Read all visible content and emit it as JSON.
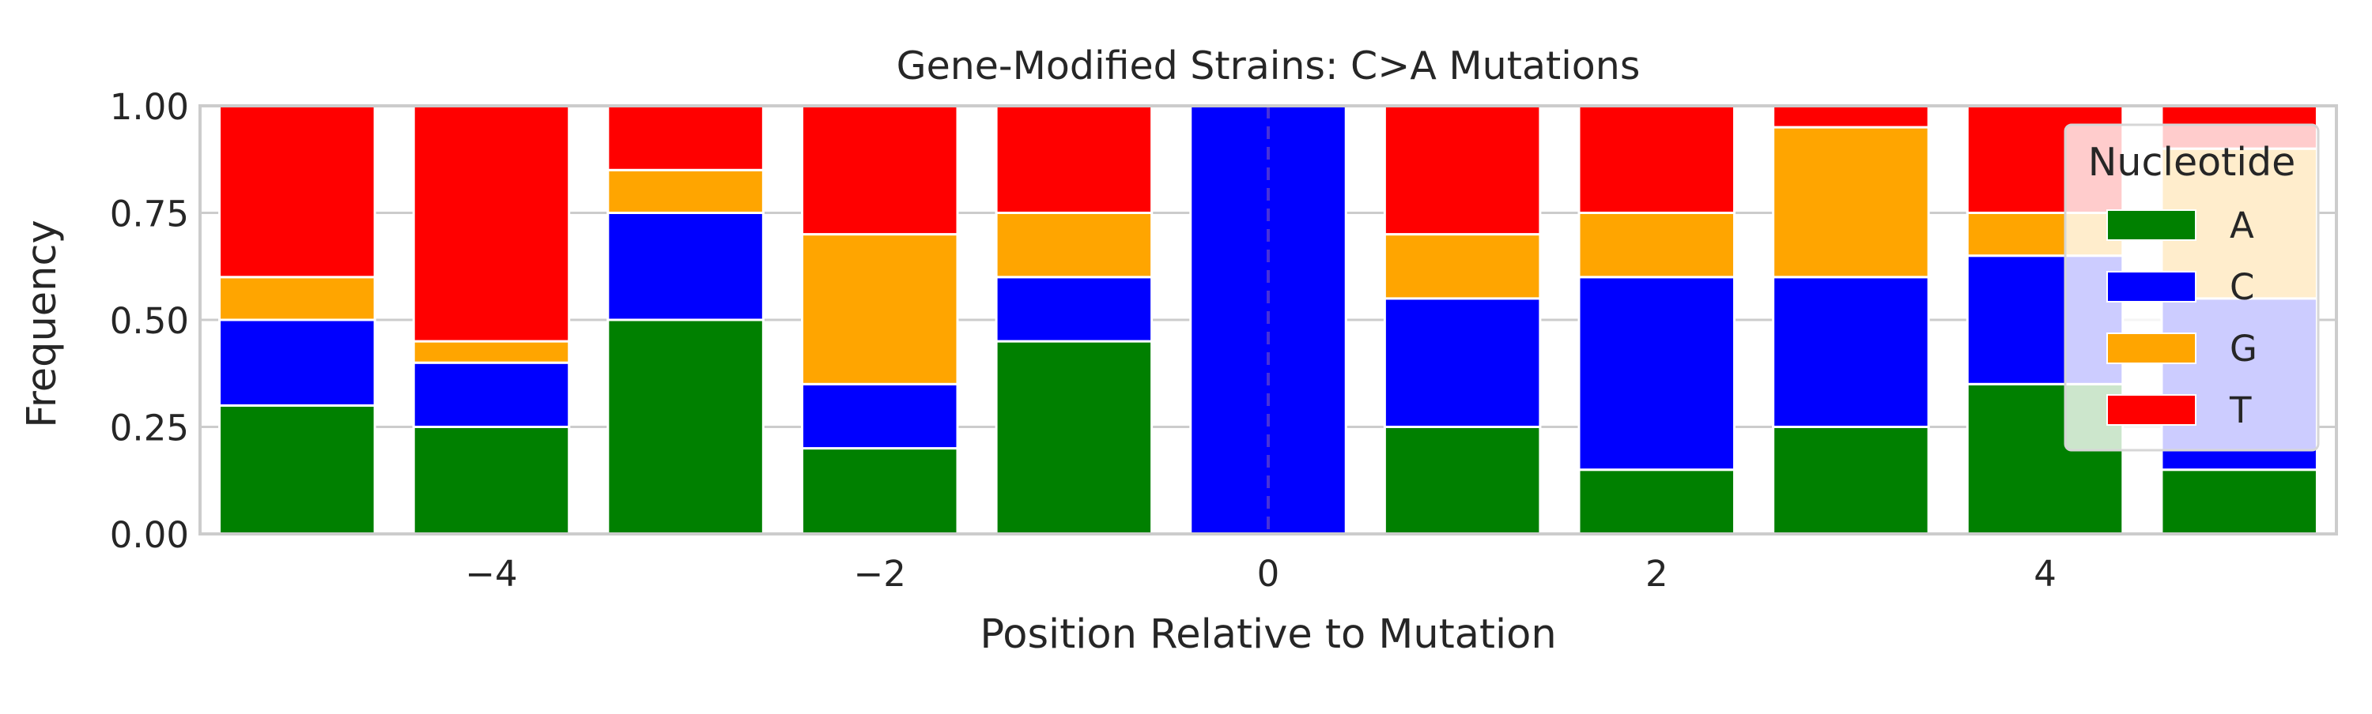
{
  "chart_data": {
    "type": "bar",
    "stacked": true,
    "title": "Gene-Modified Strains: C>A Mutations",
    "xlabel": "Position Relative to Mutation",
    "ylabel": "Frequency",
    "x": [
      -5,
      -4,
      -3,
      -2,
      -1,
      0,
      1,
      2,
      3,
      4,
      5
    ],
    "xlim": [
      -5.5,
      5.5
    ],
    "ylim": [
      0,
      1
    ],
    "xticks": [
      -4,
      -2,
      0,
      2,
      4
    ],
    "xtick_labels": [
      "−4",
      "−2",
      "0",
      "2",
      "4"
    ],
    "yticks": [
      0,
      0.25,
      0.5,
      0.75,
      1
    ],
    "ytick_labels": [
      "0.00",
      "0.25",
      "0.50",
      "0.75",
      "1.00"
    ],
    "grid": "horizontal",
    "mutation_marker": {
      "x": 0,
      "style": "dashed",
      "color": "#5a3fd0"
    },
    "legend": {
      "title": "Nucleotide",
      "placement": "top-right"
    },
    "series": [
      {
        "name": "A",
        "color": "#008000",
        "values": [
          0.3,
          0.25,
          0.5,
          0.2,
          0.45,
          0.0,
          0.25,
          0.15,
          0.25,
          0.35,
          0.15
        ]
      },
      {
        "name": "C",
        "color": "#0000ff",
        "values": [
          0.2,
          0.15,
          0.25,
          0.15,
          0.15,
          1.0,
          0.3,
          0.45,
          0.35,
          0.3,
          0.4
        ]
      },
      {
        "name": "G",
        "color": "#ffa500",
        "values": [
          0.1,
          0.05,
          0.1,
          0.35,
          0.15,
          0.0,
          0.15,
          0.15,
          0.35,
          0.1,
          0.35
        ]
      },
      {
        "name": "T",
        "color": "#ff0000",
        "values": [
          0.4,
          0.55,
          0.15,
          0.3,
          0.25,
          0.0,
          0.3,
          0.25,
          0.05,
          0.25,
          0.1
        ]
      }
    ]
  }
}
